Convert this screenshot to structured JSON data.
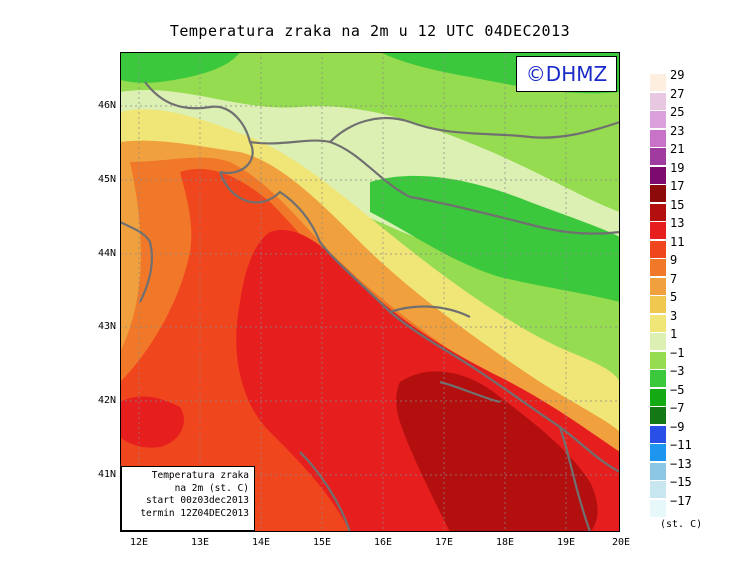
{
  "title": "Temperatura zraka na 2m u 12 UTC 04DEC2013",
  "logo": "©DHMZ",
  "info_box": {
    "line1": "Temperatura zraka",
    "line2": "na 2m (st. C)",
    "line3": "start 00z03dec2013",
    "line4": "termin 12Z04DEC2013"
  },
  "axes": {
    "lon_labels": [
      "12E",
      "13E",
      "14E",
      "15E",
      "16E",
      "17E",
      "18E",
      "19E",
      "20E"
    ],
    "lat_labels": [
      "46N",
      "45N",
      "44N",
      "43N",
      "42N",
      "41N"
    ]
  },
  "colorbar": {
    "labels": [
      "29",
      "27",
      "25",
      "23",
      "21",
      "19",
      "17",
      "15",
      "13",
      "11",
      "9",
      "7",
      "5",
      "3",
      "1",
      "−1",
      "−3",
      "−5",
      "−7",
      "−9",
      "−11",
      "−13",
      "−15",
      "−17"
    ],
    "unit": "(st. C)",
    "colors": [
      "#fdeee0",
      "#e8c8e0",
      "#dca0dc",
      "#c873c8",
      "#a03ca0",
      "#7d0a6e",
      "#8c0a0a",
      "#b40f0f",
      "#e61e1e",
      "#f0461e",
      "#f07828",
      "#f0a03c",
      "#f0c850",
      "#f0e678",
      "#dcf0b4",
      "#96dc50",
      "#3cc83c",
      "#14aa14",
      "#147814",
      "#2850e6",
      "#1e96f0",
      "#8cc8e6",
      "#c8e6f0",
      "#e6f8fa"
    ]
  }
}
